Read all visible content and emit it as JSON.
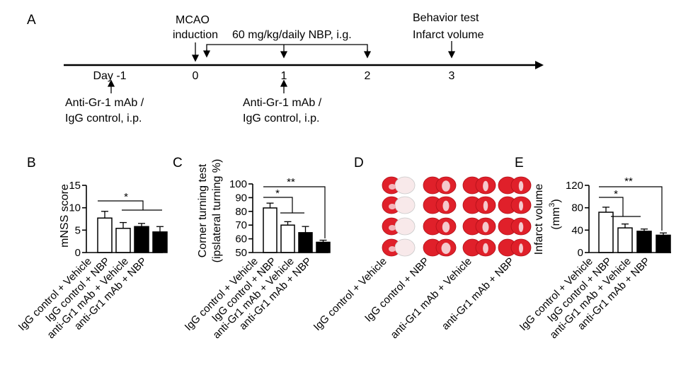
{
  "panel_letters": {
    "a": "A",
    "b": "B",
    "c": "C",
    "d": "D",
    "e": "E"
  },
  "timeline": {
    "mcao_line1": "MCAO",
    "mcao_line2": "induction",
    "treatment_label": "60 mg/kg/daily NBP, i.g.",
    "behavior_label": "Behavior test",
    "infarct_label": "Infarct volume",
    "day_minus1_label": "Day -1",
    "day_ticks": [
      "0",
      "1",
      "2",
      "3"
    ],
    "antibody_line1": "Anti-Gr-1 mAb /",
    "antibody_line2": "IgG control, i.p."
  },
  "groups": [
    "IgG control + Vehicle",
    "IgG control + NBP",
    "anti-Gr1 mAb + Vehicle",
    "anti-Gr1 mAb + NBP"
  ],
  "chart_data": [
    {
      "panel": "B",
      "type": "bar",
      "ylabel": "mNSS score",
      "ylim": [
        0,
        15
      ],
      "yticks": [
        "0",
        "5",
        "10",
        "15"
      ],
      "categories": [
        "IgG control + Vehicle",
        "IgG control + NBP",
        "anti-Gr1 mAb + Vehicle",
        "anti-Gr1 mAb + NBP"
      ],
      "values": [
        7.7,
        5.4,
        5.8,
        4.6
      ],
      "errors": [
        1.5,
        1.3,
        0.7,
        1.2
      ],
      "fills": [
        "#ffffff",
        "#ffffff",
        "#000000",
        "#000000"
      ],
      "significance": [
        "*"
      ]
    },
    {
      "panel": "C",
      "type": "bar",
      "ylabel_line1": "Corner turning test",
      "ylabel_line2": "(ipslateral turning %)",
      "ylim": [
        50,
        100
      ],
      "yticks": [
        "50",
        "60",
        "70",
        "80",
        "90",
        "100"
      ],
      "categories": [
        "IgG control + Vehicle",
        "IgG control + NBP",
        "anti-Gr1 mAb + Vehicle",
        "anti-Gr1 mAb + NBP"
      ],
      "values": [
        82.5,
        70,
        64.5,
        57.5
      ],
      "errors": [
        3.5,
        2.5,
        4.5,
        1.5
      ],
      "fills": [
        "#ffffff",
        "#ffffff",
        "#000000",
        "#000000"
      ],
      "significance": [
        "*",
        "**"
      ]
    },
    {
      "panel": "E",
      "type": "bar",
      "ylabel_line1": "Infarct volume",
      "ylabel_line2": "(mm",
      "ylabel_sup": "3",
      "ylabel_close": ")",
      "ylim": [
        0,
        120
      ],
      "yticks": [
        "0",
        "40",
        "80",
        "120"
      ],
      "categories": [
        "IgG control + Vehicle",
        "IgG control + NBP",
        "anti-Gr1 mAb + Vehicle",
        "anti-Gr1 mAb + NBP"
      ],
      "values": [
        72,
        44,
        38,
        31
      ],
      "errors": [
        9,
        7,
        4,
        4
      ],
      "fills": [
        "#ffffff",
        "#ffffff",
        "#000000",
        "#000000"
      ],
      "significance": [
        "*",
        "**"
      ]
    }
  ],
  "colors": {
    "axis": "#000000",
    "stain_red": "#e0202a",
    "stain_pale": "#f6d3d6"
  }
}
